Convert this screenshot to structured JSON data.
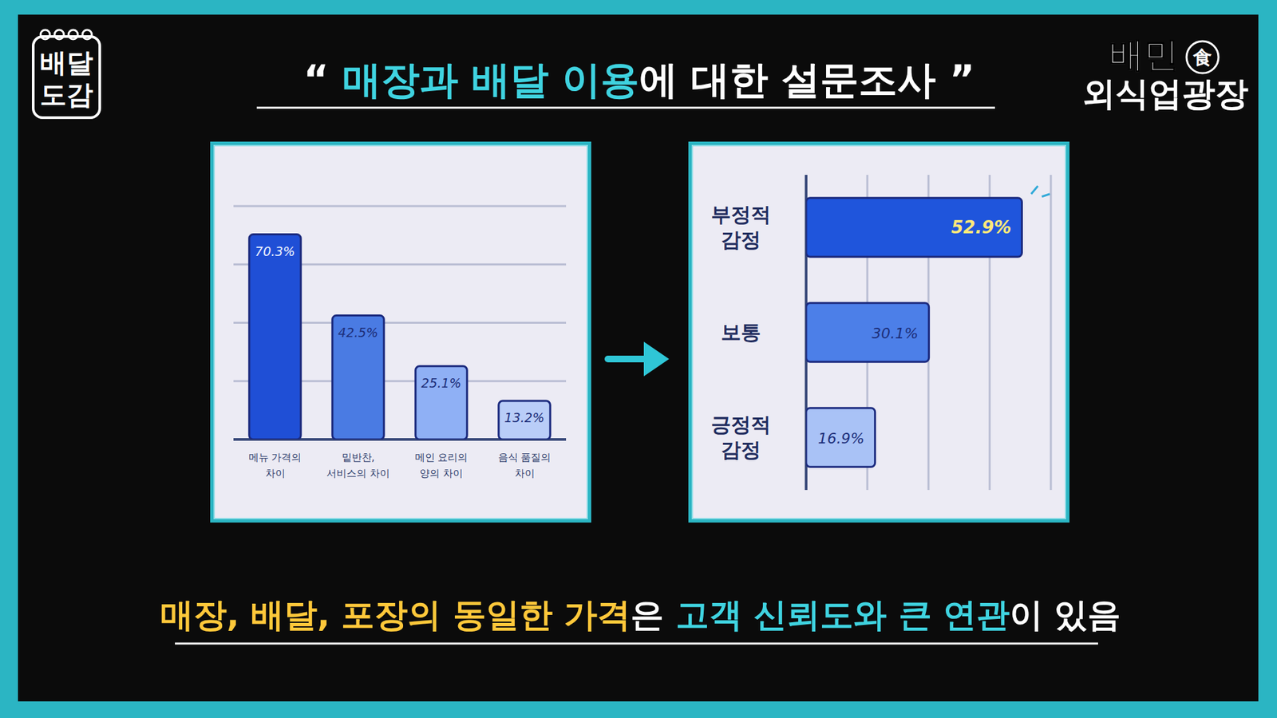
{
  "header": {
    "title_open": "“",
    "title_highlight": "매장과 배달 이용",
    "title_rest": "에 대한 설문조사",
    "title_close": "”",
    "badge": "배달\n도감",
    "brand": "배민",
    "brand_icon": "食",
    "brand_sub": "외식업광장"
  },
  "chart_data": [
    {
      "type": "bar",
      "categories": [
        "메뉴 가격의\n차이",
        "밑반찬,\n서비스의 차이",
        "메인 요리의\n양의 차이",
        "음식 품질의\n차이"
      ],
      "values": [
        70.3,
        42.5,
        25.1,
        13.2
      ],
      "value_labels": [
        "70.3%",
        "42.5%",
        "25.1%",
        "13.2%"
      ],
      "colors": [
        "#1f4fd6",
        "#4a7be3",
        "#8fb0f5",
        "#b9cdf8"
      ],
      "ylim": [
        0,
        80
      ],
      "yticks": [
        0,
        20,
        40,
        60,
        80
      ],
      "grid": true,
      "data_labels": true,
      "tick_labels": "x"
    },
    {
      "type": "bar",
      "orientation": "horizontal",
      "categories": [
        "부정적\n감정",
        "보통",
        "긍정적\n감정"
      ],
      "values": [
        52.9,
        30.1,
        16.9
      ],
      "value_labels": [
        "52.9%",
        "30.1%",
        "16.9%"
      ],
      "colors": [
        "#1f55dc",
        "#4c7fe8",
        "#a9c2f6"
      ],
      "xlim": [
        0,
        60
      ],
      "xticks": [
        0,
        15,
        30,
        45,
        60
      ],
      "grid": true,
      "data_labels": true,
      "tick_labels": "y"
    }
  ],
  "caption": [
    "매장, 배달, 포장의 동일한 가격",
    "은 ",
    "고객 신뢰도와 큰 연관",
    "이 있음"
  ]
}
